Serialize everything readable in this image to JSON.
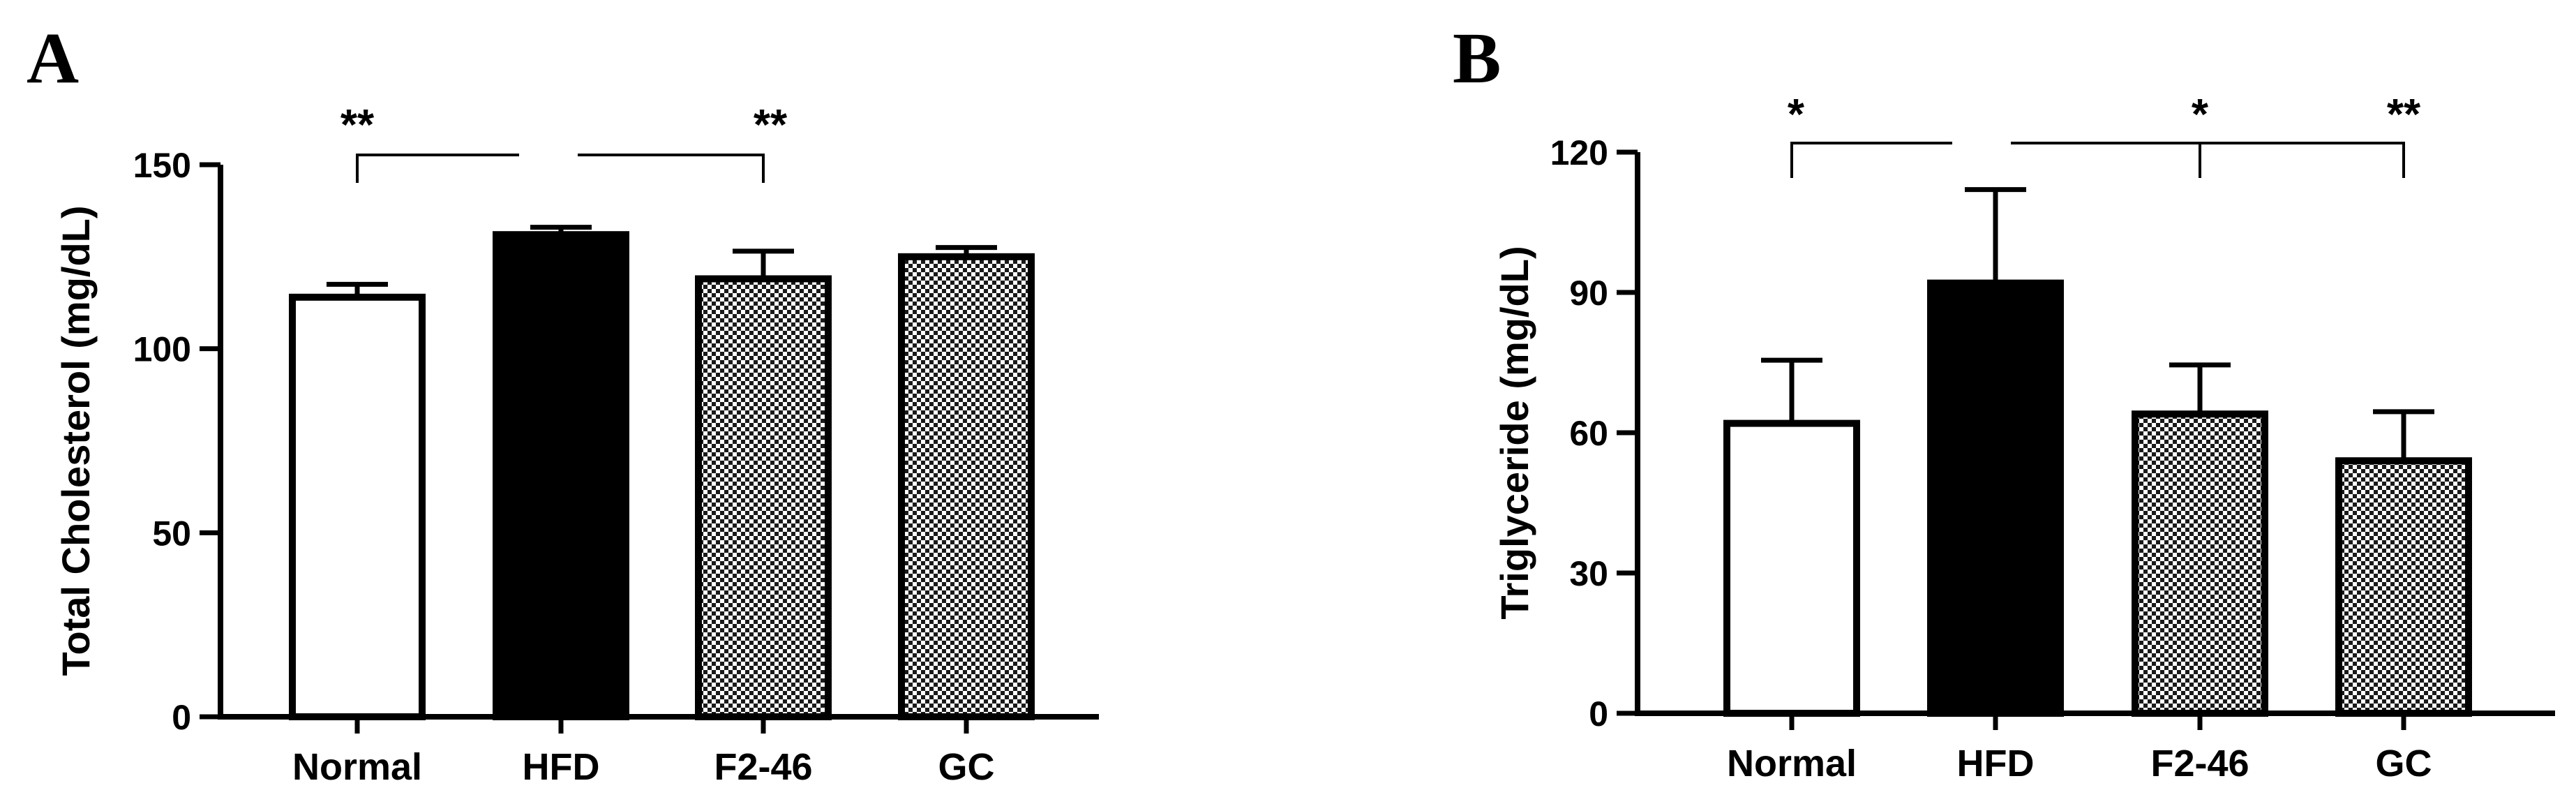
{
  "chart_data": [
    {
      "panel": "A",
      "type": "bar",
      "categories": [
        "Normal",
        "HFD",
        "F2-46",
        "GC"
      ],
      "values": [
        114,
        131,
        119,
        125
      ],
      "errors": [
        3.5,
        2,
        7.5,
        2.5
      ],
      "fills": [
        "white",
        "black",
        "checker",
        "checker"
      ],
      "ylabel": "Total Cholesterol (mg/dL)",
      "ylim": [
        0,
        150
      ],
      "yticks": [
        0,
        50,
        100,
        150
      ],
      "significance": [
        {
          "label": "**",
          "from": 0,
          "to": 1
        },
        {
          "label": "**",
          "from": 1,
          "to": 2
        }
      ]
    },
    {
      "panel": "B",
      "type": "bar",
      "categories": [
        "Normal",
        "HFD",
        "F2-46",
        "GC"
      ],
      "values": [
        62,
        92,
        64,
        54
      ],
      "errors": [
        13.5,
        20,
        10.5,
        10.5
      ],
      "fills": [
        "white",
        "black",
        "checker",
        "checker"
      ],
      "ylabel": "Triglyceride (mg/dL)",
      "ylim": [
        0,
        120
      ],
      "yticks": [
        0,
        30,
        60,
        90,
        120
      ],
      "significance": [
        {
          "label": "*",
          "from": 0,
          "to": 1
        },
        {
          "label": "*",
          "from": 1,
          "to": 2
        },
        {
          "label": "**",
          "from": 1,
          "to": 3
        }
      ]
    }
  ]
}
